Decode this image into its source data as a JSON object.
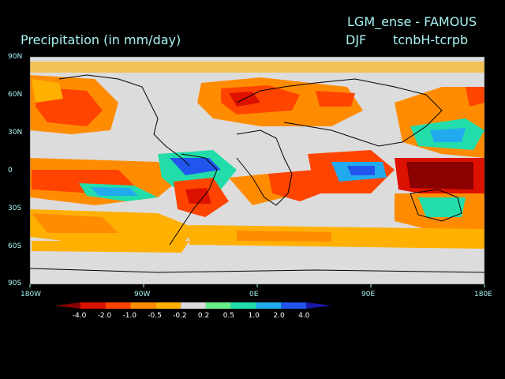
{
  "header": {
    "model_title": "LGM_ense - FAMOUS",
    "variable": "Precipitation (in mm/day)",
    "season": "DJF",
    "experiment": "tcnbH-tcrpb"
  },
  "axes": {
    "y_ticks": [
      "90N",
      "60N",
      "30N",
      "0",
      "30S",
      "60S",
      "90S"
    ],
    "x_ticks": [
      "180W",
      "90W",
      "0E",
      "90E",
      "180E"
    ]
  },
  "colorbar": {
    "labels": [
      "-4.0",
      "-2.0",
      "-1.0",
      "-0.5",
      "-0.2",
      "0.2",
      "0.5",
      "1.0",
      "2.0",
      "4.0"
    ],
    "colors": [
      "#8b0000",
      "#dd1100",
      "#ff4400",
      "#ff8c00",
      "#ffb000",
      "#dcdcdc",
      "#66ee88",
      "#22ddaa",
      "#22aaee",
      "#2255ee",
      "#1a1aaa"
    ]
  },
  "map_colors": {
    "ocean_background": "#dcdcdc",
    "coast": "#000000"
  }
}
